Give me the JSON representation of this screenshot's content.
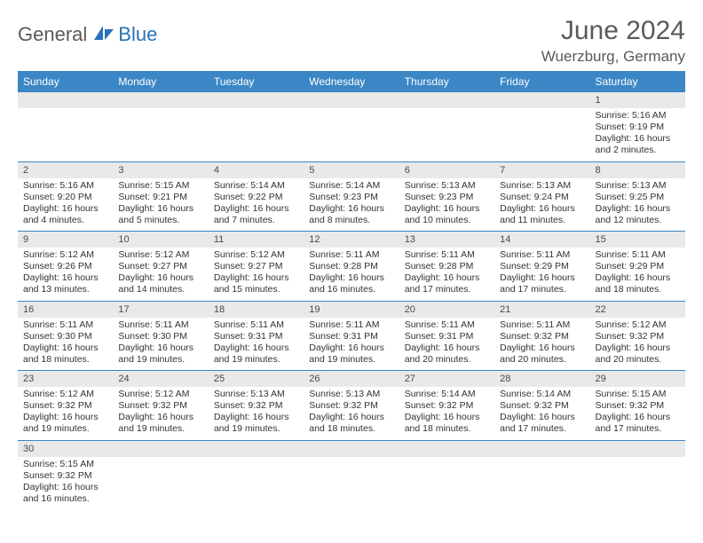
{
  "brand": {
    "part1": "General",
    "part2": "Blue"
  },
  "title": "June 2024",
  "location": "Wuerzburg, Germany",
  "colors": {
    "headerBg": "#3b86c5",
    "headerText": "#ffffff",
    "dayNumBg": "#e9e9e9",
    "textColor": "#333333",
    "titleColor": "#5a5a5a"
  },
  "dayHeaders": [
    "Sunday",
    "Monday",
    "Tuesday",
    "Wednesday",
    "Thursday",
    "Friday",
    "Saturday"
  ],
  "weeks": [
    [
      {
        "num": "",
        "sunrise": "",
        "sunset": "",
        "daylight": ""
      },
      {
        "num": "",
        "sunrise": "",
        "sunset": "",
        "daylight": ""
      },
      {
        "num": "",
        "sunrise": "",
        "sunset": "",
        "daylight": ""
      },
      {
        "num": "",
        "sunrise": "",
        "sunset": "",
        "daylight": ""
      },
      {
        "num": "",
        "sunrise": "",
        "sunset": "",
        "daylight": ""
      },
      {
        "num": "",
        "sunrise": "",
        "sunset": "",
        "daylight": ""
      },
      {
        "num": "1",
        "sunrise": "Sunrise: 5:16 AM",
        "sunset": "Sunset: 9:19 PM",
        "daylight": "Daylight: 16 hours and 2 minutes."
      }
    ],
    [
      {
        "num": "2",
        "sunrise": "Sunrise: 5:16 AM",
        "sunset": "Sunset: 9:20 PM",
        "daylight": "Daylight: 16 hours and 4 minutes."
      },
      {
        "num": "3",
        "sunrise": "Sunrise: 5:15 AM",
        "sunset": "Sunset: 9:21 PM",
        "daylight": "Daylight: 16 hours and 5 minutes."
      },
      {
        "num": "4",
        "sunrise": "Sunrise: 5:14 AM",
        "sunset": "Sunset: 9:22 PM",
        "daylight": "Daylight: 16 hours and 7 minutes."
      },
      {
        "num": "5",
        "sunrise": "Sunrise: 5:14 AM",
        "sunset": "Sunset: 9:23 PM",
        "daylight": "Daylight: 16 hours and 8 minutes."
      },
      {
        "num": "6",
        "sunrise": "Sunrise: 5:13 AM",
        "sunset": "Sunset: 9:23 PM",
        "daylight": "Daylight: 16 hours and 10 minutes."
      },
      {
        "num": "7",
        "sunrise": "Sunrise: 5:13 AM",
        "sunset": "Sunset: 9:24 PM",
        "daylight": "Daylight: 16 hours and 11 minutes."
      },
      {
        "num": "8",
        "sunrise": "Sunrise: 5:13 AM",
        "sunset": "Sunset: 9:25 PM",
        "daylight": "Daylight: 16 hours and 12 minutes."
      }
    ],
    [
      {
        "num": "9",
        "sunrise": "Sunrise: 5:12 AM",
        "sunset": "Sunset: 9:26 PM",
        "daylight": "Daylight: 16 hours and 13 minutes."
      },
      {
        "num": "10",
        "sunrise": "Sunrise: 5:12 AM",
        "sunset": "Sunset: 9:27 PM",
        "daylight": "Daylight: 16 hours and 14 minutes."
      },
      {
        "num": "11",
        "sunrise": "Sunrise: 5:12 AM",
        "sunset": "Sunset: 9:27 PM",
        "daylight": "Daylight: 16 hours and 15 minutes."
      },
      {
        "num": "12",
        "sunrise": "Sunrise: 5:11 AM",
        "sunset": "Sunset: 9:28 PM",
        "daylight": "Daylight: 16 hours and 16 minutes."
      },
      {
        "num": "13",
        "sunrise": "Sunrise: 5:11 AM",
        "sunset": "Sunset: 9:28 PM",
        "daylight": "Daylight: 16 hours and 17 minutes."
      },
      {
        "num": "14",
        "sunrise": "Sunrise: 5:11 AM",
        "sunset": "Sunset: 9:29 PM",
        "daylight": "Daylight: 16 hours and 17 minutes."
      },
      {
        "num": "15",
        "sunrise": "Sunrise: 5:11 AM",
        "sunset": "Sunset: 9:29 PM",
        "daylight": "Daylight: 16 hours and 18 minutes."
      }
    ],
    [
      {
        "num": "16",
        "sunrise": "Sunrise: 5:11 AM",
        "sunset": "Sunset: 9:30 PM",
        "daylight": "Daylight: 16 hours and 18 minutes."
      },
      {
        "num": "17",
        "sunrise": "Sunrise: 5:11 AM",
        "sunset": "Sunset: 9:30 PM",
        "daylight": "Daylight: 16 hours and 19 minutes."
      },
      {
        "num": "18",
        "sunrise": "Sunrise: 5:11 AM",
        "sunset": "Sunset: 9:31 PM",
        "daylight": "Daylight: 16 hours and 19 minutes."
      },
      {
        "num": "19",
        "sunrise": "Sunrise: 5:11 AM",
        "sunset": "Sunset: 9:31 PM",
        "daylight": "Daylight: 16 hours and 19 minutes."
      },
      {
        "num": "20",
        "sunrise": "Sunrise: 5:11 AM",
        "sunset": "Sunset: 9:31 PM",
        "daylight": "Daylight: 16 hours and 20 minutes."
      },
      {
        "num": "21",
        "sunrise": "Sunrise: 5:11 AM",
        "sunset": "Sunset: 9:32 PM",
        "daylight": "Daylight: 16 hours and 20 minutes."
      },
      {
        "num": "22",
        "sunrise": "Sunrise: 5:12 AM",
        "sunset": "Sunset: 9:32 PM",
        "daylight": "Daylight: 16 hours and 20 minutes."
      }
    ],
    [
      {
        "num": "23",
        "sunrise": "Sunrise: 5:12 AM",
        "sunset": "Sunset: 9:32 PM",
        "daylight": "Daylight: 16 hours and 19 minutes."
      },
      {
        "num": "24",
        "sunrise": "Sunrise: 5:12 AM",
        "sunset": "Sunset: 9:32 PM",
        "daylight": "Daylight: 16 hours and 19 minutes."
      },
      {
        "num": "25",
        "sunrise": "Sunrise: 5:13 AM",
        "sunset": "Sunset: 9:32 PM",
        "daylight": "Daylight: 16 hours and 19 minutes."
      },
      {
        "num": "26",
        "sunrise": "Sunrise: 5:13 AM",
        "sunset": "Sunset: 9:32 PM",
        "daylight": "Daylight: 16 hours and 18 minutes."
      },
      {
        "num": "27",
        "sunrise": "Sunrise: 5:14 AM",
        "sunset": "Sunset: 9:32 PM",
        "daylight": "Daylight: 16 hours and 18 minutes."
      },
      {
        "num": "28",
        "sunrise": "Sunrise: 5:14 AM",
        "sunset": "Sunset: 9:32 PM",
        "daylight": "Daylight: 16 hours and 17 minutes."
      },
      {
        "num": "29",
        "sunrise": "Sunrise: 5:15 AM",
        "sunset": "Sunset: 9:32 PM",
        "daylight": "Daylight: 16 hours and 17 minutes."
      }
    ],
    [
      {
        "num": "30",
        "sunrise": "Sunrise: 5:15 AM",
        "sunset": "Sunset: 9:32 PM",
        "daylight": "Daylight: 16 hours and 16 minutes."
      },
      {
        "num": "",
        "sunrise": "",
        "sunset": "",
        "daylight": ""
      },
      {
        "num": "",
        "sunrise": "",
        "sunset": "",
        "daylight": ""
      },
      {
        "num": "",
        "sunrise": "",
        "sunset": "",
        "daylight": ""
      },
      {
        "num": "",
        "sunrise": "",
        "sunset": "",
        "daylight": ""
      },
      {
        "num": "",
        "sunrise": "",
        "sunset": "",
        "daylight": ""
      },
      {
        "num": "",
        "sunrise": "",
        "sunset": "",
        "daylight": ""
      }
    ]
  ]
}
